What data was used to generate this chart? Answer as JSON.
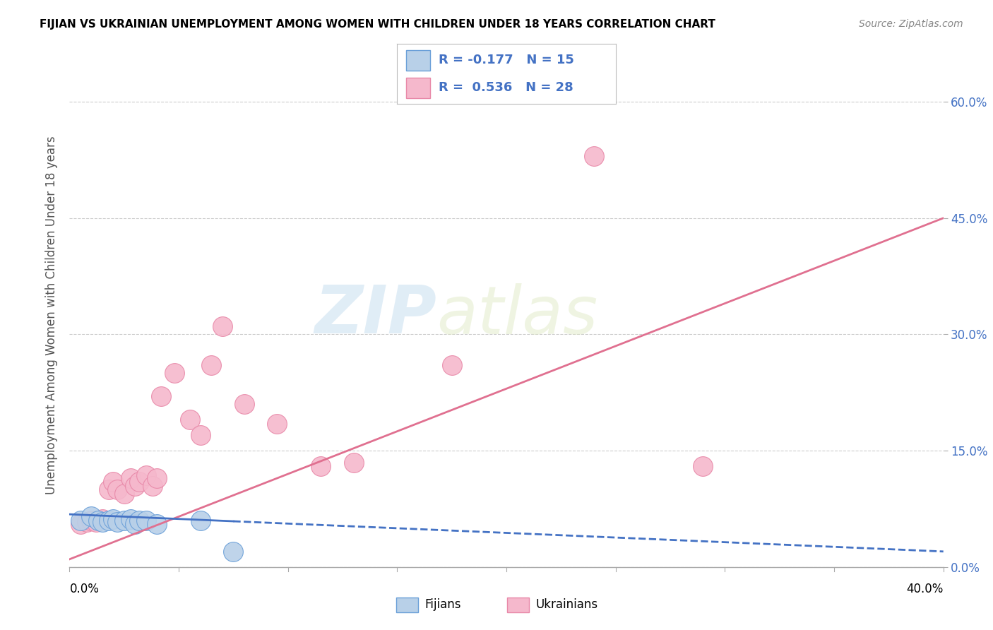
{
  "title": "FIJIAN VS UKRAINIAN UNEMPLOYMENT AMONG WOMEN WITH CHILDREN UNDER 18 YEARS CORRELATION CHART",
  "source": "Source: ZipAtlas.com",
  "ylabel": "Unemployment Among Women with Children Under 18 years",
  "xlim": [
    0.0,
    0.4
  ],
  "ylim": [
    0.0,
    0.65
  ],
  "yticks": [
    0.0,
    0.15,
    0.3,
    0.45,
    0.6
  ],
  "ytick_labels": [
    "0.0%",
    "15.0%",
    "30.0%",
    "45.0%",
    "60.0%"
  ],
  "fijian_R": -0.177,
  "fijian_N": 15,
  "ukrainian_R": 0.536,
  "ukrainian_N": 28,
  "fijian_color": "#b8d0e8",
  "fijian_edge_color": "#6a9fd8",
  "fijian_line_color": "#4472c4",
  "ukrainian_color": "#f5b8cc",
  "ukrainian_edge_color": "#e888a8",
  "ukrainian_line_color": "#e07090",
  "watermark_zip": "ZIP",
  "watermark_atlas": "atlas",
  "background_color": "#ffffff",
  "fijian_x": [
    0.005,
    0.01,
    0.013,
    0.015,
    0.018,
    0.02,
    0.022,
    0.025,
    0.028,
    0.03,
    0.032,
    0.035,
    0.04,
    0.06,
    0.075
  ],
  "fijian_y": [
    0.06,
    0.065,
    0.06,
    0.058,
    0.06,
    0.062,
    0.058,
    0.06,
    0.062,
    0.055,
    0.06,
    0.06,
    0.055,
    0.06,
    0.02
  ],
  "ukrainian_x": [
    0.005,
    0.008,
    0.01,
    0.012,
    0.015,
    0.018,
    0.02,
    0.022,
    0.025,
    0.028,
    0.03,
    0.032,
    0.035,
    0.038,
    0.04,
    0.042,
    0.048,
    0.055,
    0.06,
    0.065,
    0.07,
    0.08,
    0.095,
    0.115,
    0.13,
    0.175,
    0.24,
    0.29
  ],
  "ukrainian_y": [
    0.055,
    0.058,
    0.06,
    0.058,
    0.062,
    0.1,
    0.11,
    0.1,
    0.095,
    0.115,
    0.105,
    0.11,
    0.118,
    0.105,
    0.115,
    0.22,
    0.25,
    0.19,
    0.17,
    0.26,
    0.31,
    0.21,
    0.185,
    0.13,
    0.135,
    0.26,
    0.53,
    0.13
  ],
  "ukr_line_x0": 0.0,
  "ukr_line_y0": 0.01,
  "ukr_line_x1": 0.4,
  "ukr_line_y1": 0.45,
  "fij_line_x0": 0.0,
  "fij_line_y0": 0.068,
  "fij_line_x1": 0.4,
  "fij_line_y1": 0.02
}
